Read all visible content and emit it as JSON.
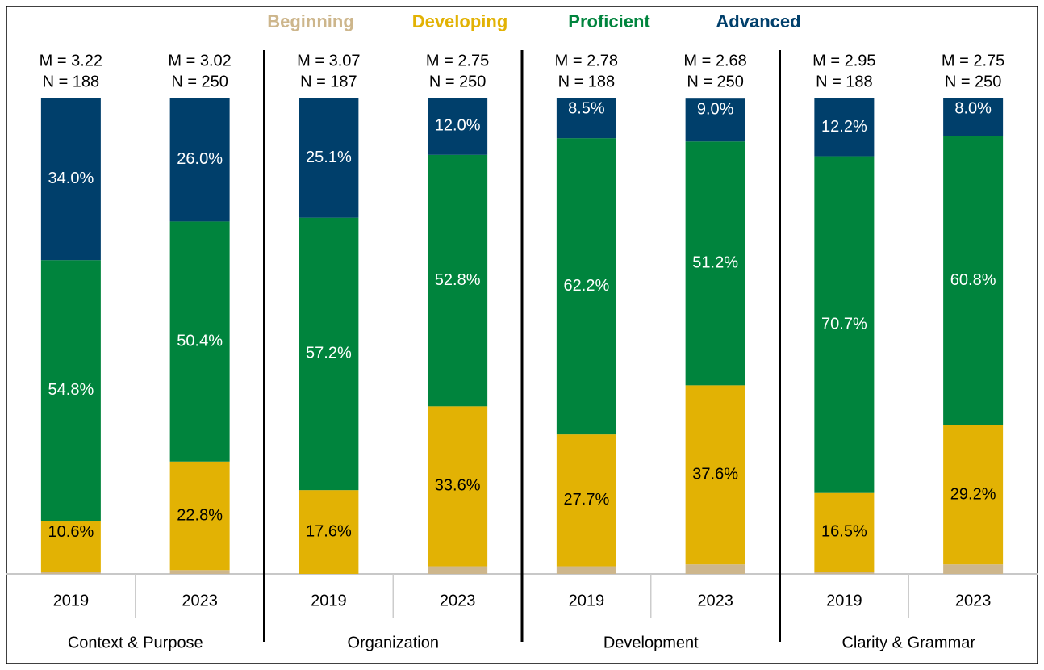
{
  "chart_data": {
    "type": "stacked_bar",
    "groups": [
      "Context & Purpose",
      "Organization",
      "Development",
      "Clarity & Grammar"
    ],
    "categories": [
      "2019",
      "2023",
      "2019",
      "2023",
      "2019",
      "2023",
      "2019",
      "2023"
    ],
    "m_labels": [
      "M = 3.22",
      "M = 3.02",
      "M = 3.07",
      "M = 2.75",
      "M = 2.78",
      "M = 2.68",
      "M = 2.95",
      "M = 2.75"
    ],
    "n_labels": [
      "N = 188",
      "N = 250",
      "N = 187",
      "N = 250",
      "N = 188",
      "N = 250",
      "N = 188",
      "N = 250"
    ],
    "ylim": [
      0,
      100
    ],
    "series": [
      {
        "name": "Beginning",
        "color": "#cdb68c",
        "label_color": "#000000",
        "values": [
          0.5,
          0.8,
          null,
          1.6,
          1.6,
          2.0,
          0.5,
          2.0
        ],
        "value_labels": [
          "0.5%",
          "0.8%",
          null,
          "1.6%",
          "1.6%",
          "2.0%",
          "0.5%",
          "2.0%"
        ]
      },
      {
        "name": "Developing",
        "color": "#e2b204",
        "label_color": "#000000",
        "values": [
          10.6,
          22.8,
          17.6,
          33.6,
          27.7,
          37.6,
          16.5,
          29.2
        ],
        "value_labels": [
          "10.6%",
          "22.8%",
          "17.6%",
          "33.6%",
          "27.7%",
          "37.6%",
          "16.5%",
          "29.2%"
        ]
      },
      {
        "name": "Proficient",
        "color": "#00843d",
        "label_color": "#ffffff",
        "values": [
          54.8,
          50.4,
          57.2,
          52.8,
          62.2,
          51.2,
          70.7,
          60.8
        ],
        "value_labels": [
          "54.8%",
          "50.4%",
          "57.2%",
          "52.8%",
          "62.2%",
          "51.2%",
          "70.7%",
          "60.8%"
        ]
      },
      {
        "name": "Advanced",
        "color": "#003f6b",
        "label_color": "#ffffff",
        "values": [
          34.0,
          26.0,
          25.1,
          12.0,
          8.5,
          9.0,
          12.2,
          8.0
        ],
        "value_labels": [
          "34.0%",
          "26.0%",
          "25.1%",
          "12.0%",
          "8.5%",
          "9.0%",
          "12.2%",
          "8.0%"
        ]
      }
    ]
  }
}
